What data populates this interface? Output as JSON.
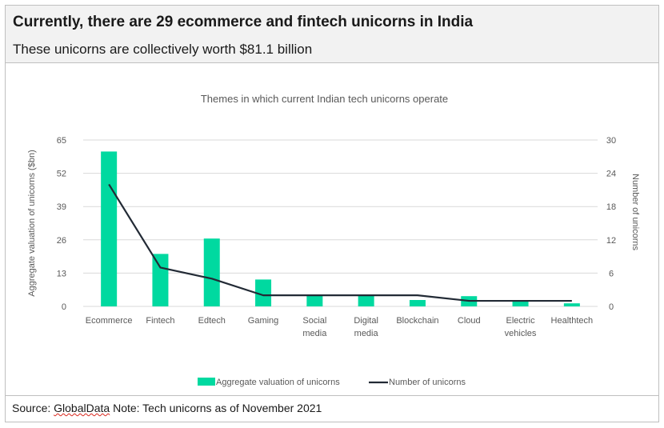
{
  "header": {
    "title": "Currently, there are 29 ecommerce and fintech unicorns in India",
    "subtitle": "These unicorns are collectively worth $81.1 billion"
  },
  "footer": {
    "source_label": "Source:",
    "source_name": "GlobalData",
    "note": "Note: Tech unicorns as of November 2021"
  },
  "colors": {
    "bar": "#00d9a0",
    "line": "#222a35",
    "grid": "#d9d9d9",
    "axis_text": "#595959"
  },
  "chart_data": {
    "type": "bar",
    "title": "Themes in which current Indian tech unicorns operate",
    "categories": [
      [
        "Ecommerce"
      ],
      [
        "Fintech"
      ],
      [
        "Edtech"
      ],
      [
        "Gaming"
      ],
      [
        "Social",
        "media"
      ],
      [
        "Digital",
        "media"
      ],
      [
        "Blockchain"
      ],
      [
        "Cloud"
      ],
      [
        "Electric",
        "vehicles"
      ],
      [
        "Healthtech"
      ]
    ],
    "ylabel": "Aggregate valuation of unicorns ($bn)",
    "y2label": "Number of unicorns",
    "ylim": [
      0,
      65
    ],
    "yticks": [
      "0",
      "13",
      "26",
      "39",
      "52",
      "65"
    ],
    "y2lim": [
      0,
      30
    ],
    "y2ticks": [
      "0",
      "6",
      "12",
      "18",
      "24",
      "30"
    ],
    "grid": true,
    "legend_position": "bottom",
    "series": [
      {
        "name": "Aggregate valuation of unicorns",
        "type": "bar",
        "axis": "left",
        "values": [
          60.5,
          20.5,
          26.5,
          10.5,
          4.5,
          4.5,
          2.5,
          4,
          2.5,
          1.2
        ]
      },
      {
        "name": "Number of unicorns",
        "type": "line",
        "axis": "right",
        "values": [
          22,
          7,
          5,
          2,
          2,
          2,
          2,
          1,
          1,
          1
        ]
      }
    ]
  }
}
